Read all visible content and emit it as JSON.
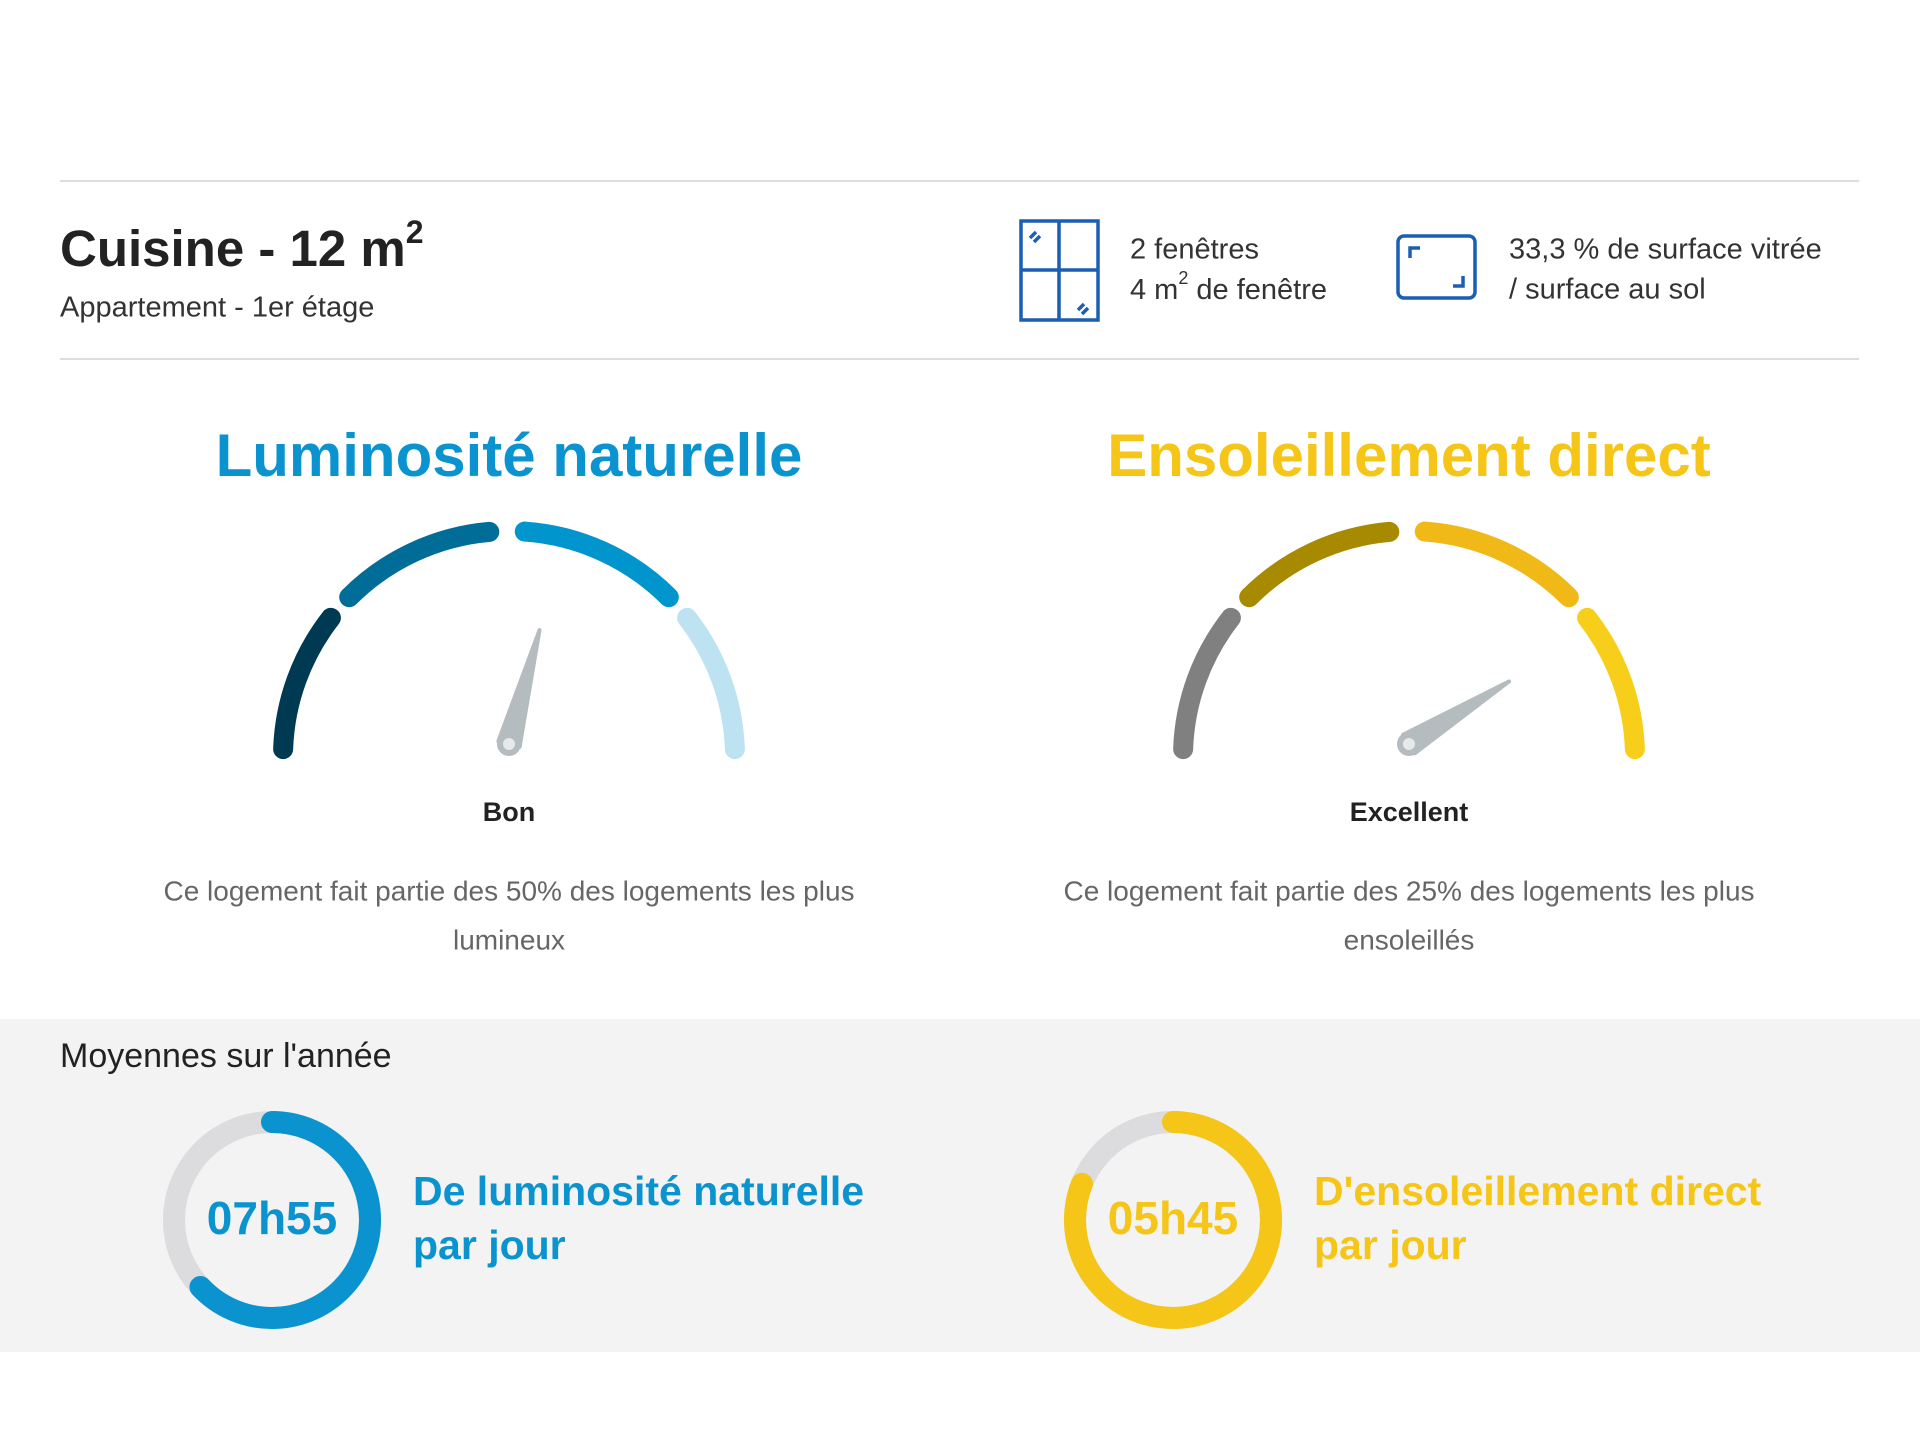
{
  "header": {
    "title": "Cuisine - 12 m",
    "title_sup": "2",
    "subtitle": "Appartement - 1er étage",
    "windows": {
      "line1": "2 fenêtres",
      "line2_pre": "4 m",
      "line2_sup": "2",
      "line2_post": " de fenêtre"
    },
    "surface": {
      "line1": "33,3 % de surface vitrée",
      "line2": "/ surface au sol"
    }
  },
  "gauges": [
    {
      "title": "Luminosité naturelle",
      "rating": "Bon",
      "description_line1": "Ce logement fait partie des 50% des logements les plus",
      "description_line2": "lumineux"
    },
    {
      "title": "Ensoleillement direct",
      "rating": "Excellent",
      "description_line1": "Ce logement fait partie des 25% des logements les plus",
      "description_line2": "ensoleillés"
    }
  ],
  "averages": {
    "title": "Moyennes sur l'année",
    "items": [
      {
        "time": "07h55",
        "label_line1": "De luminosité naturelle",
        "label_line2": "par jour"
      },
      {
        "time": "05h45",
        "label_line1": "D'ensoleillement direct",
        "label_line2": "par jour"
      }
    ]
  }
}
